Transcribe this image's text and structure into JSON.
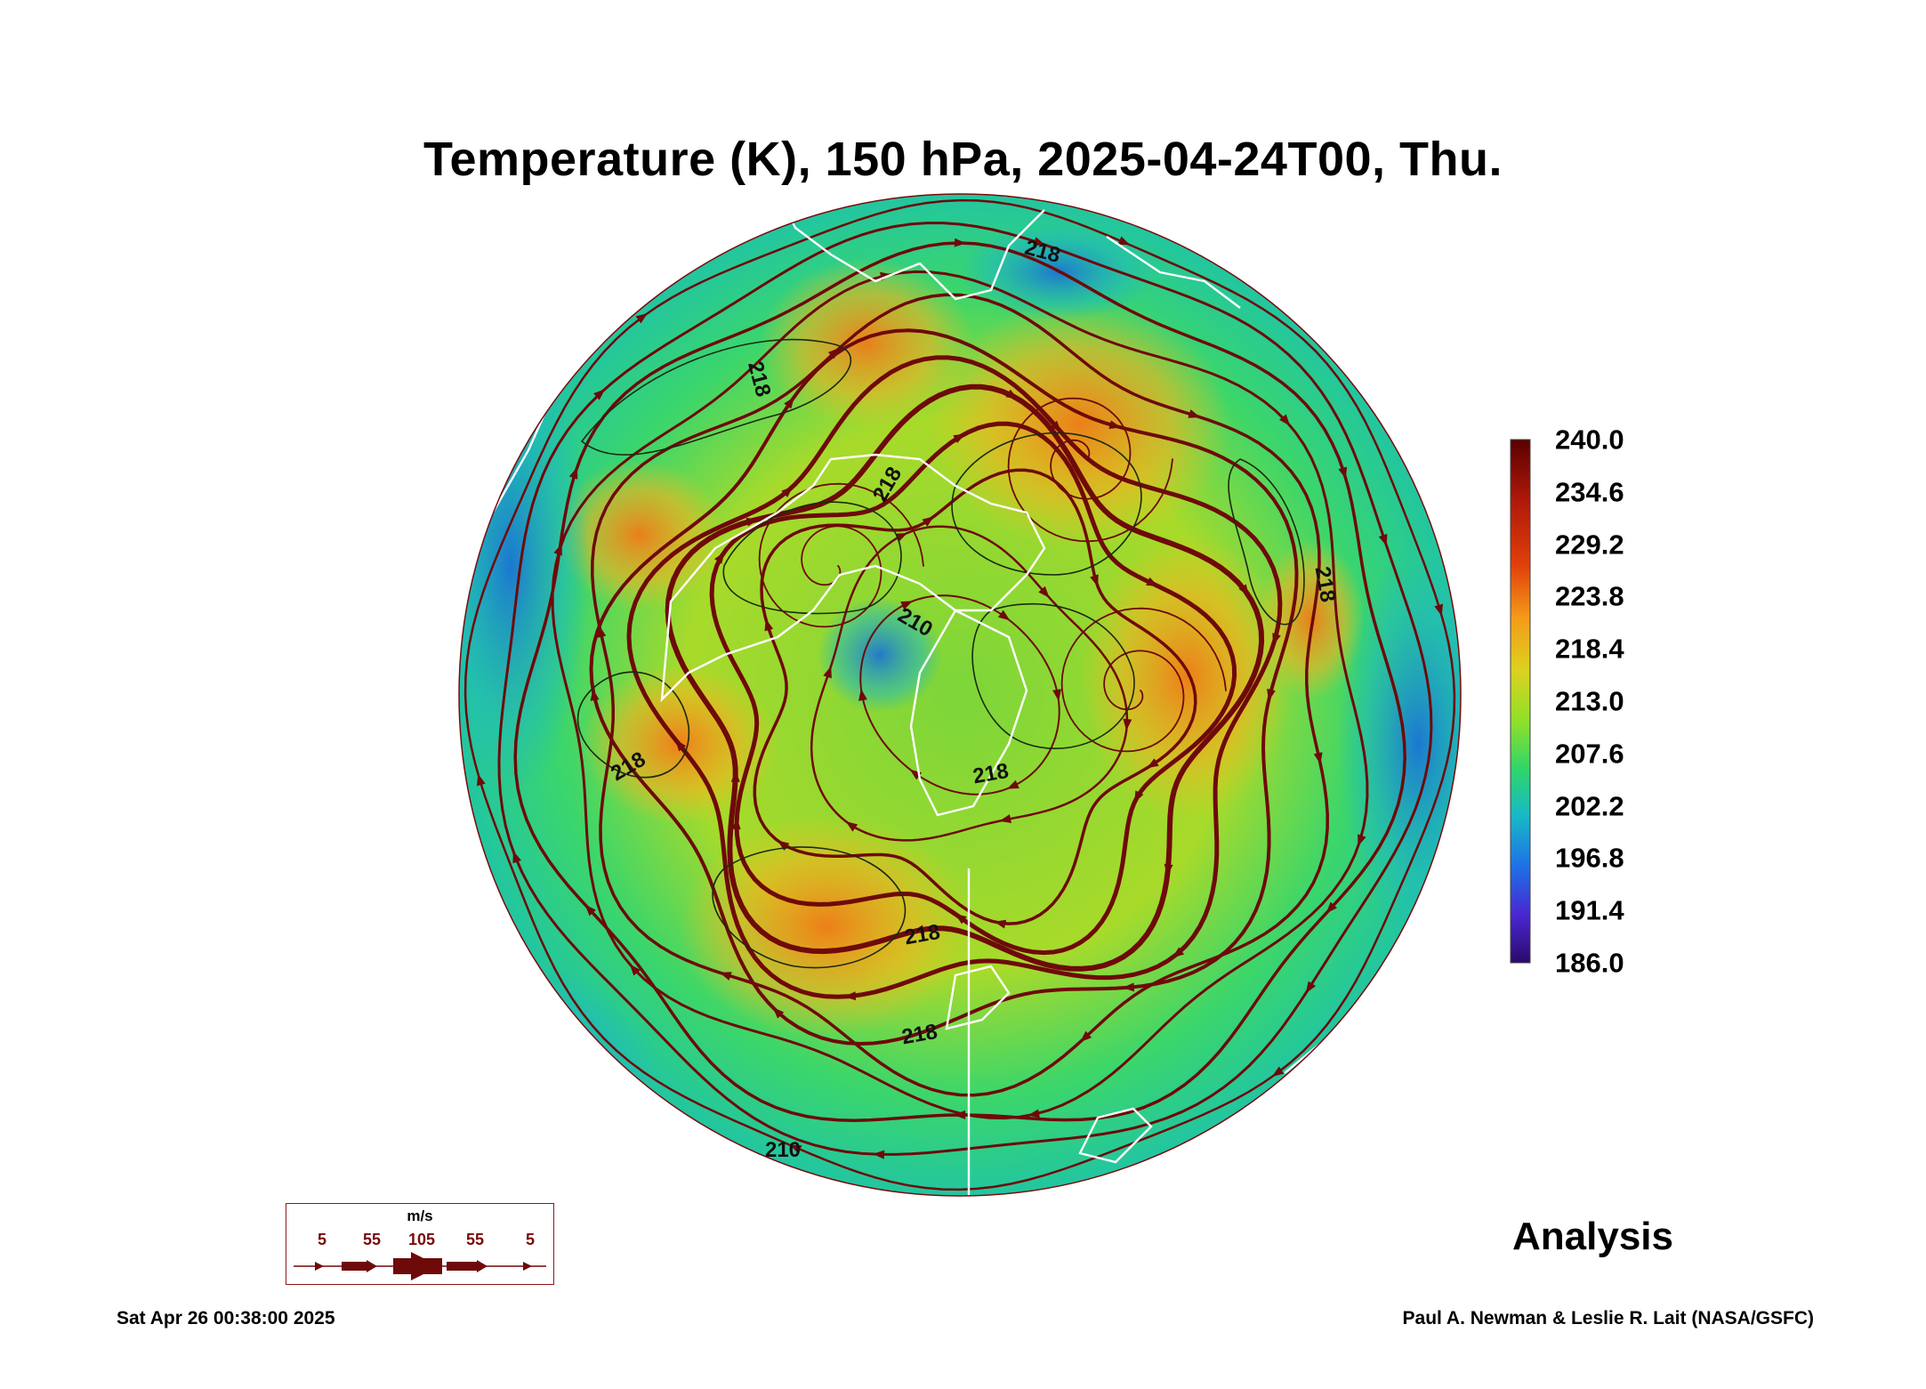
{
  "title": "Temperature (K), 150 hPa, 2025-04-24T00, Thu.",
  "stamp": "Analysis",
  "timestamp": "Sat Apr 26 00:38:00 2025",
  "credit": "Paul A. Newman & Leslie R. Lait (NASA/GSFC)",
  "colorbar": {
    "ticks": [
      "240.0",
      "234.6",
      "229.2",
      "223.8",
      "218.4",
      "213.0",
      "207.6",
      "202.2",
      "196.8",
      "191.4",
      "186.0"
    ],
    "colors": [
      "#5a0000",
      "#b01a0a",
      "#e0400a",
      "#f49a1a",
      "#dcd21e",
      "#8ee02a",
      "#2ed66a",
      "#18b8c8",
      "#1e6ee6",
      "#4a26d0",
      "#2a0a6a"
    ]
  },
  "contour_labels": [
    "218",
    "218",
    "218",
    "218",
    "218",
    "218",
    "218",
    "218",
    "210",
    "210"
  ],
  "vector_key": {
    "unit": "m/s",
    "values": [
      "5",
      "55",
      "105",
      "55",
      "5"
    ]
  },
  "colors": {
    "streamline": "#6e0a0a",
    "coastline": "#ffffff",
    "contour": "#1a2a10"
  }
}
